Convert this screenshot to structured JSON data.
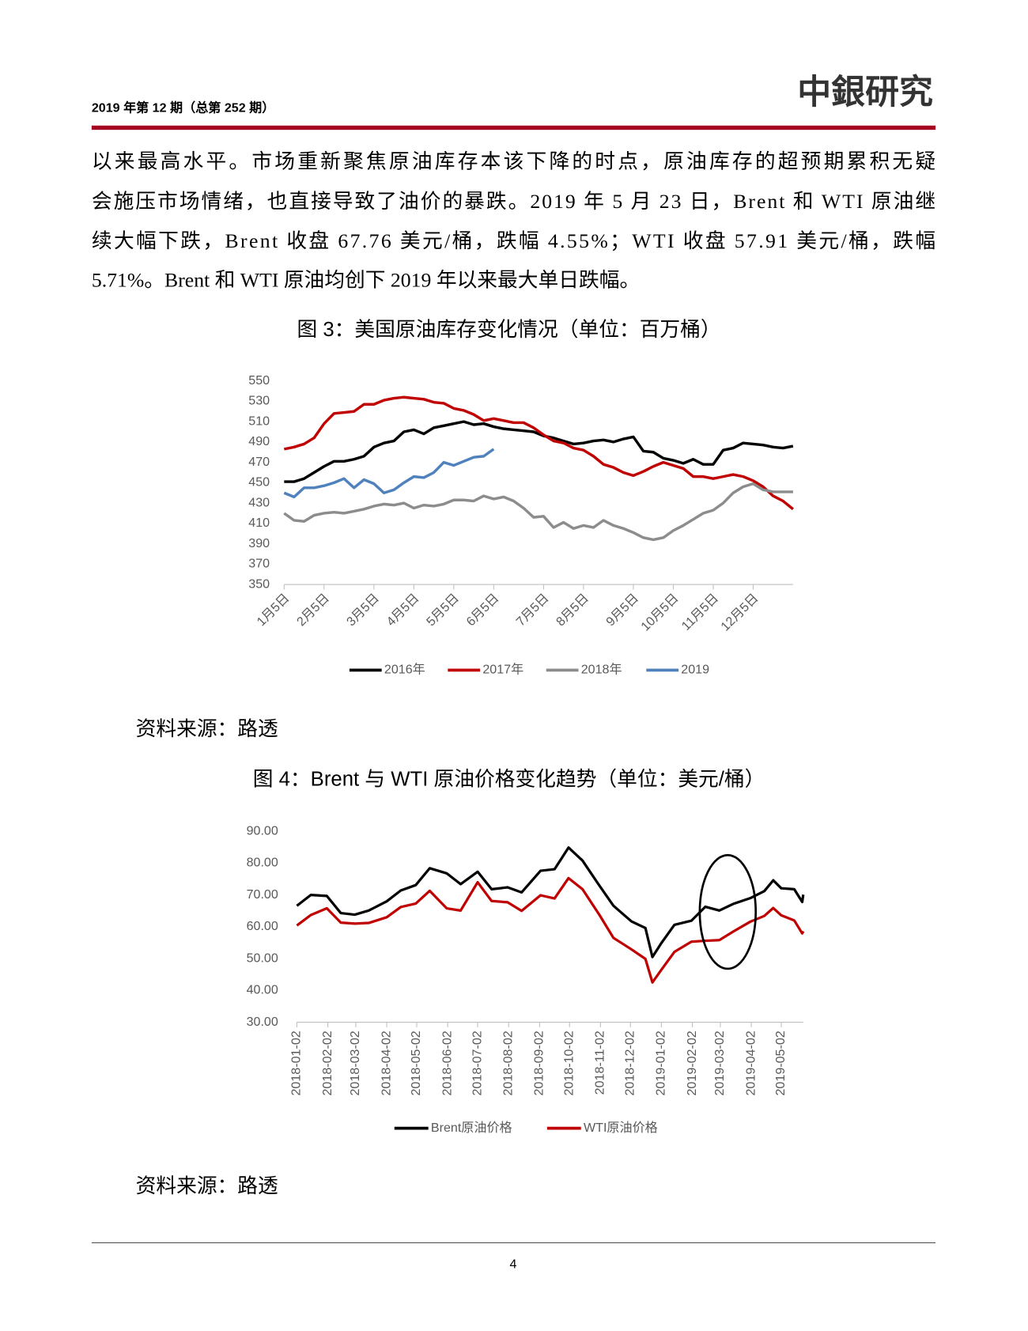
{
  "header": {
    "issue": "2019 年第 12 期（总第 252 期）",
    "logo": "中銀研究"
  },
  "body": {
    "lines": [
      "以来最高水平。市场重新聚焦原油库存本该下降的时点，原油库存的超预期累积无疑",
      "会施压市场情绪，也直接导致了油价的暴跌。2019 年 5 月 23 日，Brent 和 WTI 原油继",
      "续大幅下跌，Brent 收盘 67.76 美元/桶，跌幅 4.55%；WTI 收盘 57.91 美元/桶，跌幅",
      "5.71%。Brent 和 WTI 原油均创下 2019 年以来最大单日跌幅。"
    ]
  },
  "figures": [
    {
      "caption": "图 3：美国原油库存变化情况（单位：百万桶）",
      "source": "资料来源：路透"
    },
    {
      "caption": "图 4：Brent 与 WTI 原油价格变化趋势（单位：美元/桶）",
      "source": "资料来源：路透"
    }
  ],
  "chart_data": [
    {
      "type": "line",
      "categories": [
        "1月5日",
        null,
        null,
        null,
        "2月5日",
        null,
        null,
        null,
        null,
        "3月5日",
        null,
        null,
        null,
        "4月5日",
        null,
        null,
        null,
        "5月5日",
        null,
        null,
        null,
        "6月5日",
        null,
        null,
        null,
        null,
        "7月5日",
        null,
        null,
        null,
        "8月5日",
        null,
        null,
        null,
        null,
        "9月5日",
        null,
        null,
        null,
        "10月5日",
        null,
        null,
        null,
        "11月5日",
        null,
        null,
        null,
        "12月5日",
        null,
        null,
        null,
        null
      ],
      "series": [
        {
          "name": "2016年",
          "color": "#000000",
          "values": [
            451,
            451,
            454,
            460,
            466,
            471,
            471,
            473,
            476,
            485,
            489,
            491,
            500,
            502,
            498,
            504,
            506,
            508,
            510,
            507,
            508,
            505,
            503,
            502,
            501,
            500,
            496,
            494,
            491,
            488,
            489,
            491,
            492,
            490,
            493,
            495,
            481,
            480,
            474,
            472,
            469,
            473,
            468,
            468,
            482,
            484,
            489,
            488,
            487,
            485,
            484,
            486
          ]
        },
        {
          "name": "2017年",
          "color": "#c00000",
          "values": [
            483,
            485,
            488,
            494,
            508,
            518,
            519,
            520,
            527,
            527,
            531,
            533,
            534,
            533,
            532,
            529,
            528,
            523,
            521,
            517,
            511,
            513,
            511,
            509,
            509,
            504,
            497,
            491,
            489,
            484,
            482,
            476,
            468,
            465,
            460,
            457,
            461,
            466,
            470,
            467,
            464,
            456,
            456,
            454,
            456,
            458,
            456,
            452,
            446,
            437,
            432,
            424
          ]
        },
        {
          "name": "2018年",
          "color": "#8c8c8c",
          "values": [
            420,
            413,
            412,
            418,
            420,
            421,
            420,
            422,
            424,
            427,
            429,
            428,
            430,
            425,
            428,
            427,
            429,
            433,
            433,
            432,
            437,
            434,
            436,
            432,
            425,
            416,
            417,
            406,
            411,
            405,
            408,
            406,
            413,
            408,
            405,
            401,
            396,
            394,
            396,
            403,
            408,
            414,
            420,
            423,
            430,
            440,
            446,
            449,
            443,
            441,
            441,
            441
          ]
        },
        {
          "name": "2019",
          "color": "#4f81bd",
          "values": [
            440,
            436,
            445,
            445,
            447,
            450,
            454,
            445,
            453,
            449,
            440,
            443,
            450,
            456,
            455,
            460,
            470,
            467,
            471,
            475,
            476,
            483,
            null,
            null,
            null,
            null,
            null,
            null,
            null,
            null,
            null,
            null,
            null,
            null,
            null,
            null,
            null,
            null,
            null,
            null,
            null,
            null,
            null,
            null,
            null,
            null,
            null,
            null,
            null,
            null,
            null,
            null
          ]
        }
      ],
      "ylim": [
        350,
        550
      ],
      "yticks": [
        350,
        370,
        390,
        410,
        430,
        450,
        470,
        490,
        510,
        530,
        550
      ],
      "legend": "bottom"
    },
    {
      "type": "line",
      "x": [
        "2018-01-02",
        "2018-01-16",
        "2018-02-01",
        "2018-02-15",
        "2018-03-01",
        "2018-03-15",
        "2018-04-02",
        "2018-04-16",
        "2018-05-01",
        "2018-05-15",
        "2018-06-01",
        "2018-06-15",
        "2018-07-02",
        "2018-07-16",
        "2018-08-01",
        "2018-08-15",
        "2018-09-03",
        "2018-09-17",
        "2018-10-01",
        "2018-10-15",
        "2018-11-01",
        "2018-11-15",
        "2018-12-03",
        "2018-12-17",
        "2018-12-24",
        "2019-01-02",
        "2019-01-15",
        "2019-02-01",
        "2019-02-15",
        "2019-03-01",
        "2019-03-15",
        "2019-04-01",
        "2019-04-15",
        "2019-04-24",
        "2019-05-02",
        "2019-05-15",
        "2019-05-23",
        "2019-05-24"
      ],
      "series": [
        {
          "name": "Brent原油价格",
          "color": "#000000",
          "values": [
            66.6,
            70.0,
            69.7,
            64.3,
            63.8,
            65.1,
            68.0,
            71.4,
            73.1,
            78.4,
            76.8,
            73.4,
            77.3,
            71.8,
            72.4,
            70.8,
            77.6,
            78.1,
            84.9,
            80.8,
            72.9,
            66.6,
            61.7,
            59.6,
            50.5,
            54.9,
            60.6,
            61.9,
            66.3,
            65.1,
            67.2,
            69.0,
            71.2,
            74.6,
            72.1,
            71.8,
            67.8,
            70.1
          ]
        },
        {
          "name": "WTI原油价格",
          "color": "#c00000",
          "values": [
            60.4,
            63.7,
            65.8,
            61.3,
            61.0,
            61.2,
            63.0,
            66.2,
            67.3,
            71.3,
            65.8,
            65.1,
            74.0,
            68.1,
            67.7,
            65.0,
            69.9,
            68.9,
            75.3,
            71.8,
            63.7,
            56.5,
            52.9,
            49.9,
            42.5,
            46.5,
            52.1,
            55.3,
            55.6,
            55.8,
            58.5,
            61.6,
            63.4,
            65.9,
            63.6,
            62.0,
            57.9,
            58.6
          ]
        }
      ],
      "xlim": [
        "2018-01-02",
        "2019-05-24"
      ],
      "xticks": [
        "2018-01-02",
        "2018-02-02",
        "2018-03-02",
        "2018-04-02",
        "2018-05-02",
        "2018-06-02",
        "2018-07-02",
        "2018-08-02",
        "2018-09-02",
        "2018-10-02",
        "2018-11-02",
        "2018-12-02",
        "2019-01-02",
        "2019-02-02",
        "2019-03-02",
        "2019-04-02",
        "2019-05-02"
      ],
      "ylim": [
        30,
        90
      ],
      "yticks": [
        {
          "value": 30,
          "label": "30.00"
        },
        {
          "value": 40,
          "label": "40.00"
        },
        {
          "value": 50,
          "label": "50.00"
        },
        {
          "value": 60,
          "label": "60.00"
        },
        {
          "value": 70,
          "label": "70.00"
        },
        {
          "value": 80,
          "label": "80.00"
        },
        {
          "value": 90,
          "label": "90.00"
        }
      ],
      "legend": "bottom"
    }
  ],
  "footer": {
    "page": "4"
  }
}
